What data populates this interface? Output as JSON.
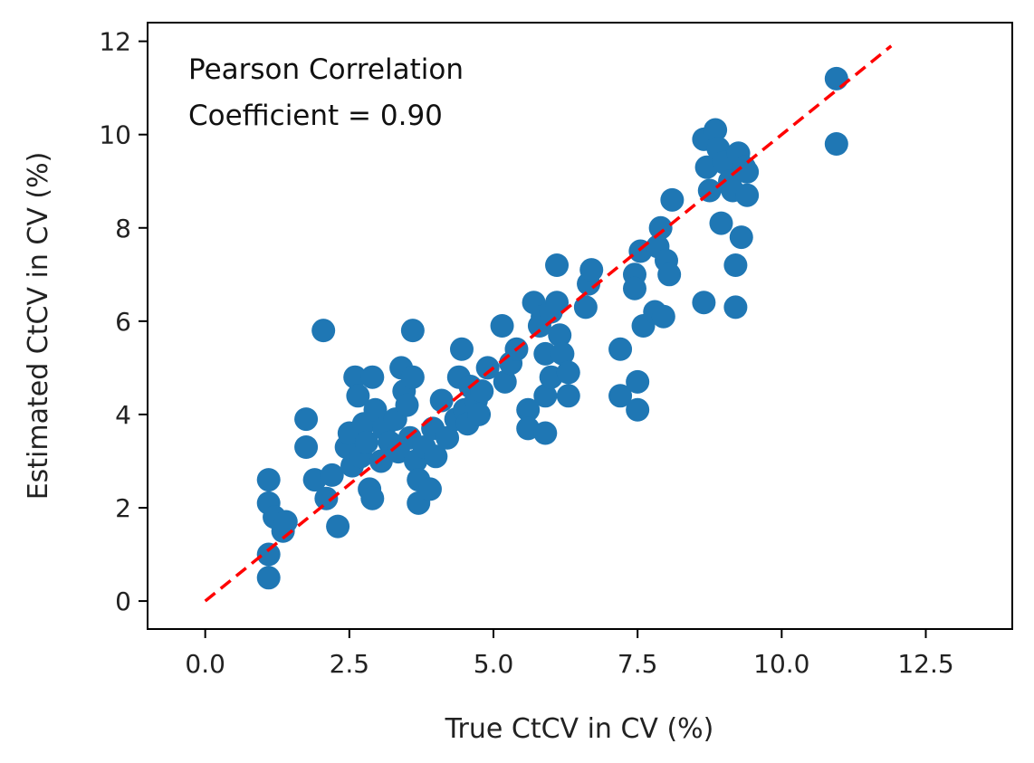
{
  "chart_data": {
    "type": "scatter",
    "title": "",
    "xlabel": "True CtCV in CV (%)",
    "ylabel": "Estimated CtCV in CV (%)",
    "xlim": [
      -1.0,
      14.0
    ],
    "ylim": [
      -0.6,
      12.4
    ],
    "x_ticks": [
      0.0,
      2.5,
      5.0,
      7.5,
      10.0,
      12.5
    ],
    "x_tick_labels": [
      "0.0",
      "2.5",
      "5.0",
      "7.5",
      "10.0",
      "12.5"
    ],
    "y_ticks": [
      0,
      2,
      4,
      6,
      8,
      10,
      12
    ],
    "y_tick_labels": [
      "0",
      "2",
      "4",
      "6",
      "8",
      "10",
      "12"
    ],
    "grid": false,
    "annotation": {
      "lines": [
        "Pearson Correlation",
        "Coefficient = 0.90"
      ]
    },
    "reference_line": {
      "name": "identity",
      "color": "#ff0000",
      "style": "dashed",
      "x": [
        0.0,
        11.9
      ],
      "y": [
        0.0,
        11.9
      ]
    },
    "series": [
      {
        "name": "samples",
        "color": "#1f77b4",
        "points": [
          [
            1.1,
            2.6
          ],
          [
            1.1,
            2.1
          ],
          [
            1.1,
            1.0
          ],
          [
            1.1,
            0.5
          ],
          [
            1.2,
            1.8
          ],
          [
            1.35,
            1.5
          ],
          [
            1.4,
            1.7
          ],
          [
            1.75,
            3.9
          ],
          [
            1.75,
            3.3
          ],
          [
            1.9,
            2.6
          ],
          [
            2.05,
            5.8
          ],
          [
            2.1,
            2.2
          ],
          [
            2.2,
            2.7
          ],
          [
            2.3,
            1.6
          ],
          [
            2.45,
            3.3
          ],
          [
            2.5,
            3.6
          ],
          [
            2.55,
            2.9
          ],
          [
            2.6,
            4.8
          ],
          [
            2.65,
            4.4
          ],
          [
            2.7,
            3.1
          ],
          [
            2.75,
            3.8
          ],
          [
            2.8,
            3.4
          ],
          [
            2.85,
            2.4
          ],
          [
            2.9,
            4.8
          ],
          [
            2.9,
            2.2
          ],
          [
            2.95,
            4.1
          ],
          [
            3.05,
            3.0
          ],
          [
            3.1,
            3.7
          ],
          [
            3.2,
            3.4
          ],
          [
            3.3,
            3.9
          ],
          [
            3.35,
            3.2
          ],
          [
            3.4,
            5.0
          ],
          [
            3.45,
            4.5
          ],
          [
            3.5,
            4.2
          ],
          [
            3.55,
            3.5
          ],
          [
            3.6,
            5.8
          ],
          [
            3.6,
            4.8
          ],
          [
            3.65,
            3.0
          ],
          [
            3.7,
            2.6
          ],
          [
            3.7,
            2.1
          ],
          [
            3.8,
            3.3
          ],
          [
            3.9,
            2.4
          ],
          [
            3.95,
            3.7
          ],
          [
            4.0,
            3.1
          ],
          [
            4.1,
            4.3
          ],
          [
            4.2,
            3.5
          ],
          [
            4.35,
            3.9
          ],
          [
            4.4,
            4.8
          ],
          [
            4.45,
            5.4
          ],
          [
            4.5,
            4.1
          ],
          [
            4.55,
            3.8
          ],
          [
            4.6,
            4.6
          ],
          [
            4.7,
            4.3
          ],
          [
            4.75,
            4.0
          ],
          [
            4.8,
            4.5
          ],
          [
            4.9,
            5.0
          ],
          [
            5.15,
            5.9
          ],
          [
            5.2,
            4.7
          ],
          [
            5.3,
            5.1
          ],
          [
            5.4,
            5.4
          ],
          [
            5.6,
            4.1
          ],
          [
            5.6,
            3.7
          ],
          [
            5.7,
            6.4
          ],
          [
            5.8,
            5.9
          ],
          [
            5.85,
            6.1
          ],
          [
            5.9,
            5.3
          ],
          [
            5.9,
            4.4
          ],
          [
            5.9,
            3.6
          ],
          [
            6.0,
            4.8
          ],
          [
            6.0,
            6.2
          ],
          [
            6.1,
            7.2
          ],
          [
            6.1,
            6.4
          ],
          [
            6.15,
            5.7
          ],
          [
            6.2,
            5.3
          ],
          [
            6.3,
            4.9
          ],
          [
            6.3,
            4.4
          ],
          [
            6.6,
            6.3
          ],
          [
            6.65,
            6.8
          ],
          [
            6.7,
            7.1
          ],
          [
            7.2,
            5.4
          ],
          [
            7.2,
            4.4
          ],
          [
            7.45,
            7.0
          ],
          [
            7.45,
            6.7
          ],
          [
            7.5,
            4.7
          ],
          [
            7.5,
            4.1
          ],
          [
            7.55,
            7.5
          ],
          [
            7.6,
            5.9
          ],
          [
            7.8,
            6.2
          ],
          [
            7.85,
            7.6
          ],
          [
            7.9,
            8.0
          ],
          [
            7.95,
            6.1
          ],
          [
            8.0,
            7.3
          ],
          [
            8.05,
            7.0
          ],
          [
            8.1,
            8.6
          ],
          [
            8.65,
            9.9
          ],
          [
            8.7,
            9.3
          ],
          [
            8.75,
            8.8
          ],
          [
            8.65,
            6.4
          ],
          [
            8.85,
            10.1
          ],
          [
            8.9,
            9.7
          ],
          [
            8.95,
            8.1
          ],
          [
            9.0,
            9.4
          ],
          [
            9.1,
            9.0
          ],
          [
            9.15,
            8.8
          ],
          [
            9.2,
            7.2
          ],
          [
            9.2,
            6.3
          ],
          [
            9.25,
            9.6
          ],
          [
            9.3,
            7.8
          ],
          [
            9.35,
            9.3
          ],
          [
            9.4,
            9.2
          ],
          [
            9.4,
            8.7
          ],
          [
            10.95,
            11.2
          ],
          [
            10.95,
            9.8
          ]
        ]
      }
    ]
  }
}
